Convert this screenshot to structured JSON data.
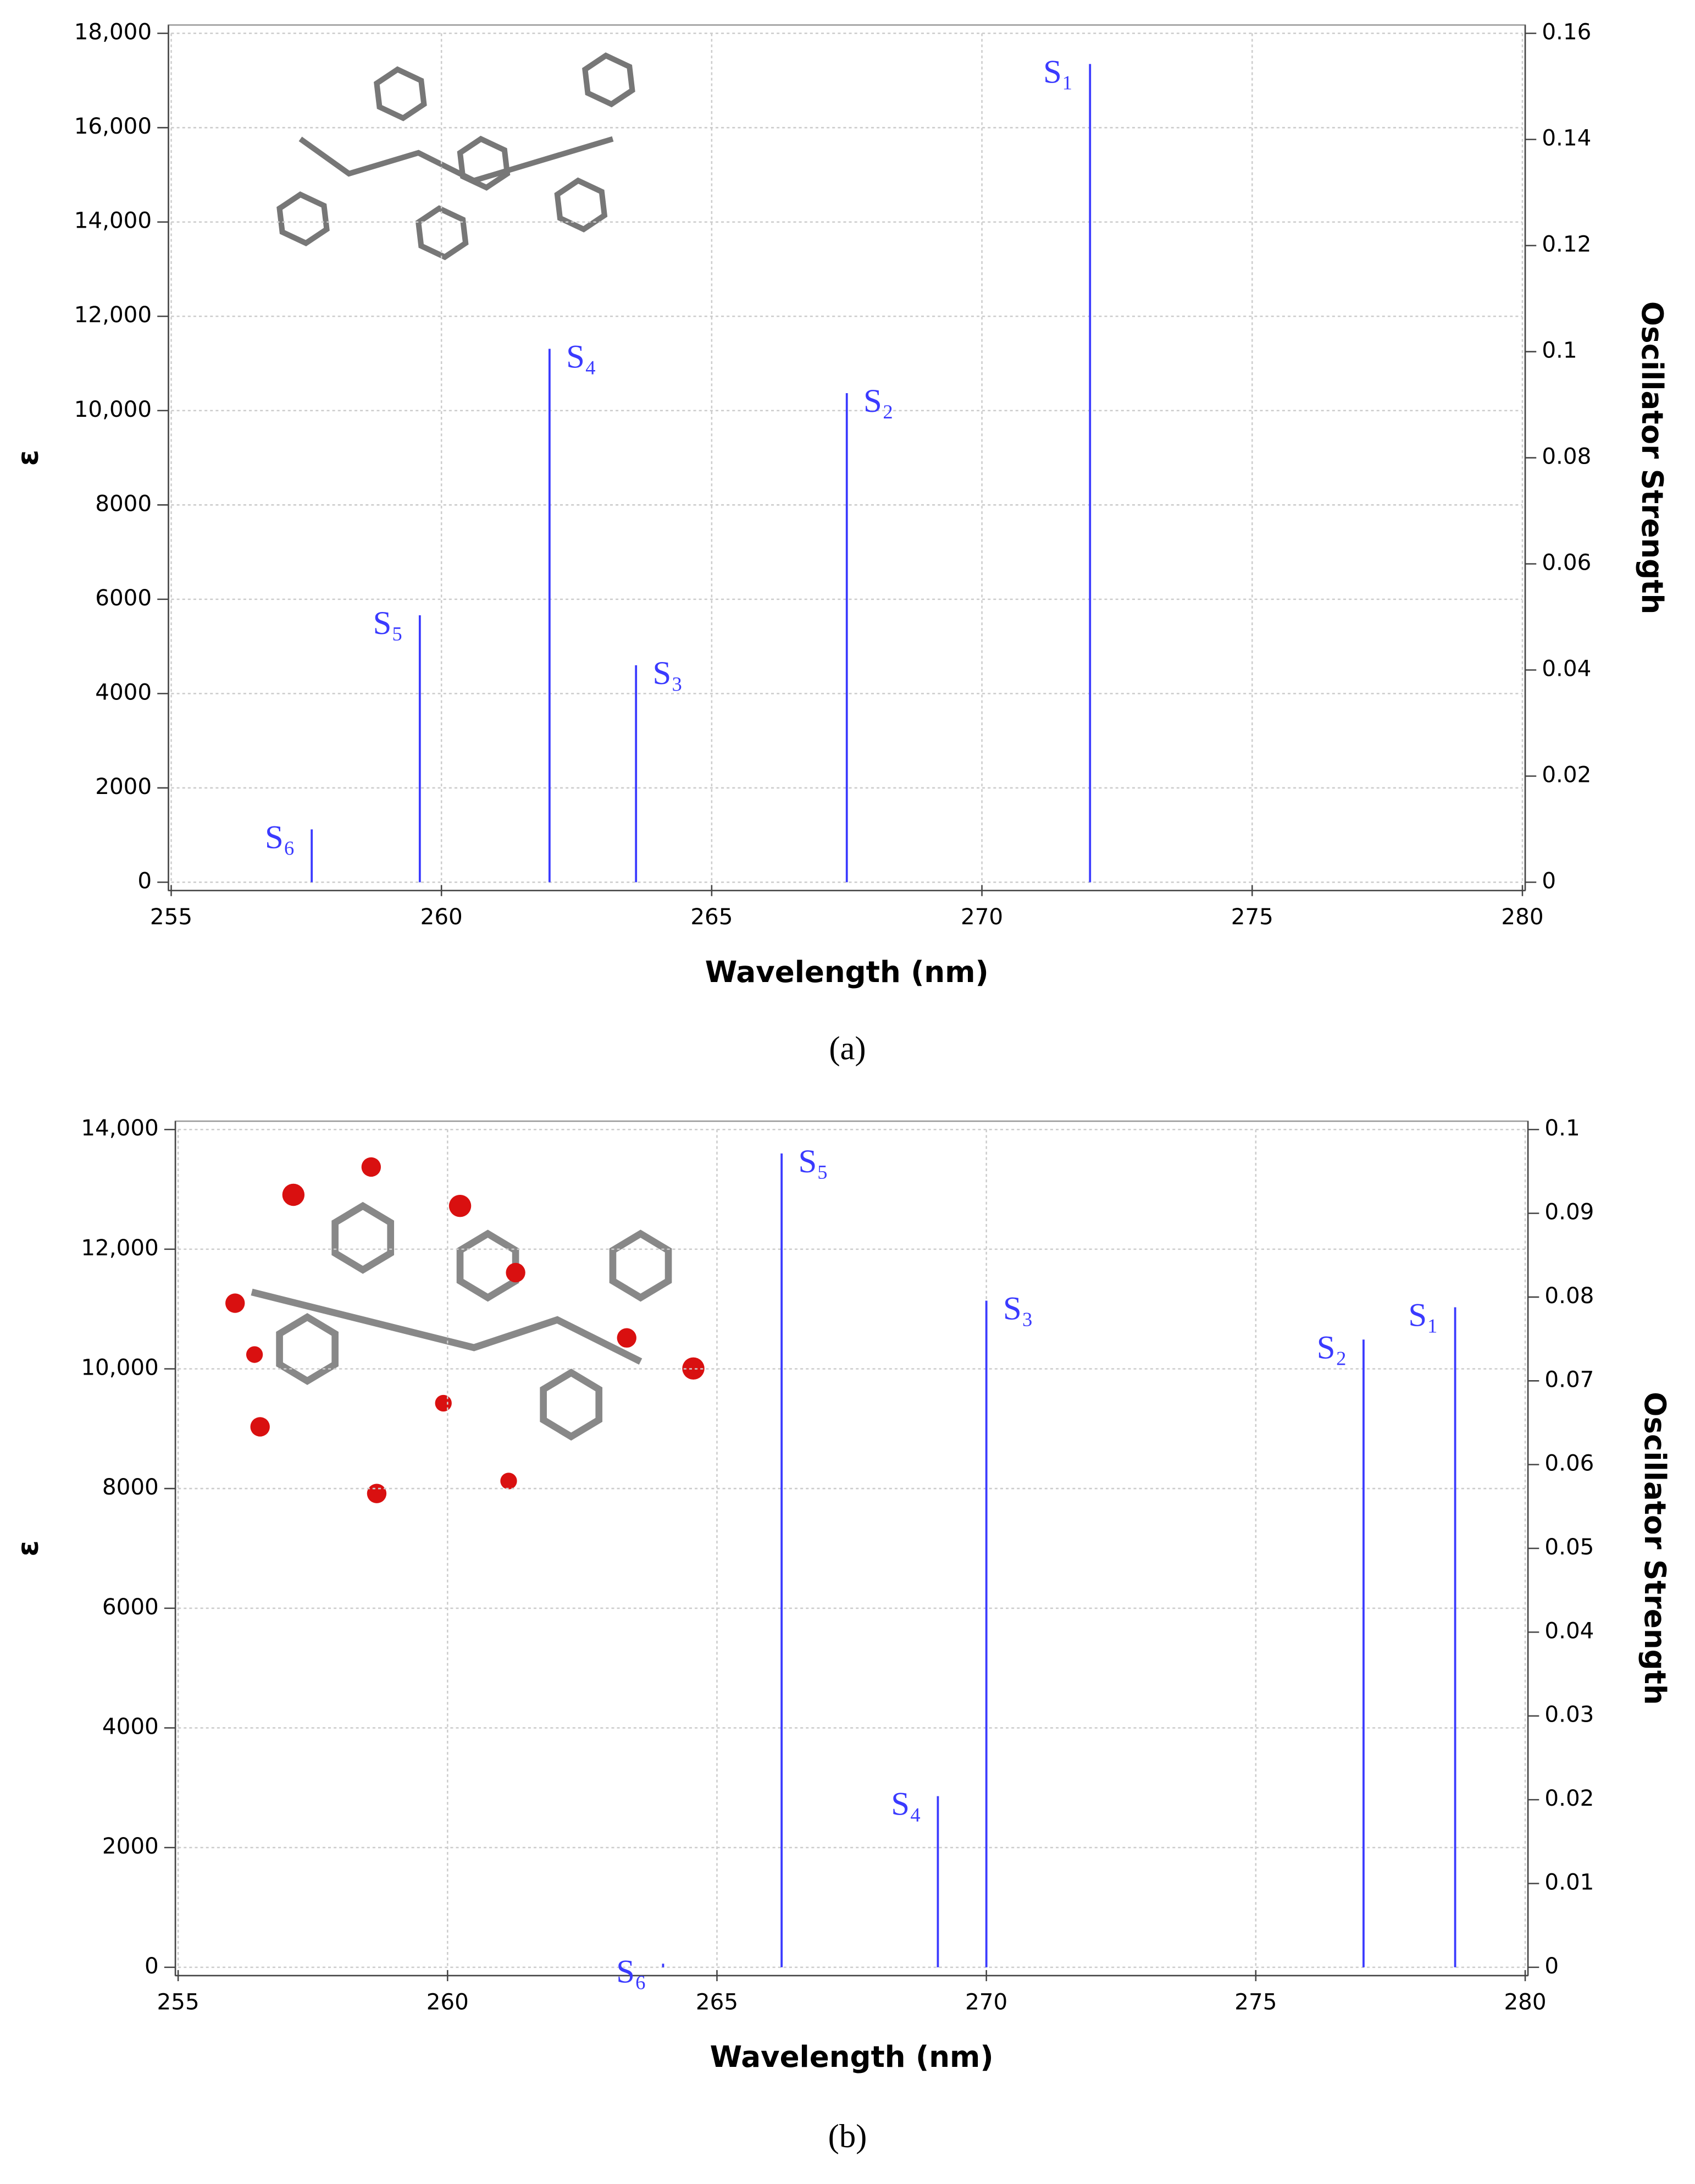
{
  "chart_data": [
    {
      "type": "stick",
      "caption": "(a)",
      "xlabel": "Wavelength (nm)",
      "ylabel": "ε",
      "y2label": "Oscillator Strength",
      "color": "#3a3aff",
      "grid": true,
      "labels": [
        "S₁",
        "S₂",
        "S₃",
        "S₄",
        "S₅",
        "S₆"
      ],
      "x": [
        272.0,
        267.5,
        263.6,
        262.0,
        259.6,
        257.6
      ],
      "values": [
        17350,
        10370,
        4600,
        11310,
        5660,
        1120
      ],
      "xlim": [
        255,
        280
      ],
      "xticks": [
        255,
        260,
        265,
        270,
        275,
        280
      ],
      "ylim": [
        0,
        18000
      ],
      "yticks": [
        0,
        2000,
        4000,
        6000,
        8000,
        {
          "value": 10000,
          "label": "10,000"
        },
        {
          "value": 12000,
          "label": "12,000"
        },
        {
          "value": 14000,
          "label": "14,000"
        },
        {
          "value": 16000,
          "label": "16,000"
        },
        {
          "value": 18000,
          "label": "18,000"
        }
      ],
      "y2lim": [
        0,
        0.16
      ],
      "y2ticks": [
        0,
        0.02,
        0.04,
        0.06,
        0.08,
        0.1,
        0.12,
        0.14,
        0.16
      ]
    },
    {
      "type": "stick",
      "caption": "(b)",
      "xlabel": "Wavelength (nm)",
      "ylabel": "ε",
      "y2label": "Oscillator Strength",
      "color": "#3a3aff",
      "grid": true,
      "labels": [
        "S₁",
        "S₂",
        "S₃",
        "S₄",
        "S₅",
        "S₆"
      ],
      "x": [
        278.7,
        277.0,
        270.0,
        269.1,
        266.2,
        264.0
      ],
      "values": [
        11030,
        10490,
        11140,
        2860,
        13600,
        60
      ],
      "xlim": [
        255,
        280
      ],
      "xticks": [
        255,
        260,
        265,
        270,
        275,
        280
      ],
      "ylim": [
        0,
        14000
      ],
      "yticks": [
        0,
        2000,
        4000,
        6000,
        8000,
        {
          "value": 10000,
          "label": "10,000"
        },
        {
          "value": 12000,
          "label": "12,000"
        },
        {
          "value": 14000,
          "label": "14,000"
        }
      ],
      "y2lim": [
        0,
        0.1
      ],
      "y2ticks": [
        0,
        0.01,
        0.02,
        0.03,
        0.04,
        0.05,
        0.06,
        0.07,
        0.08,
        0.09,
        0.1
      ]
    }
  ]
}
